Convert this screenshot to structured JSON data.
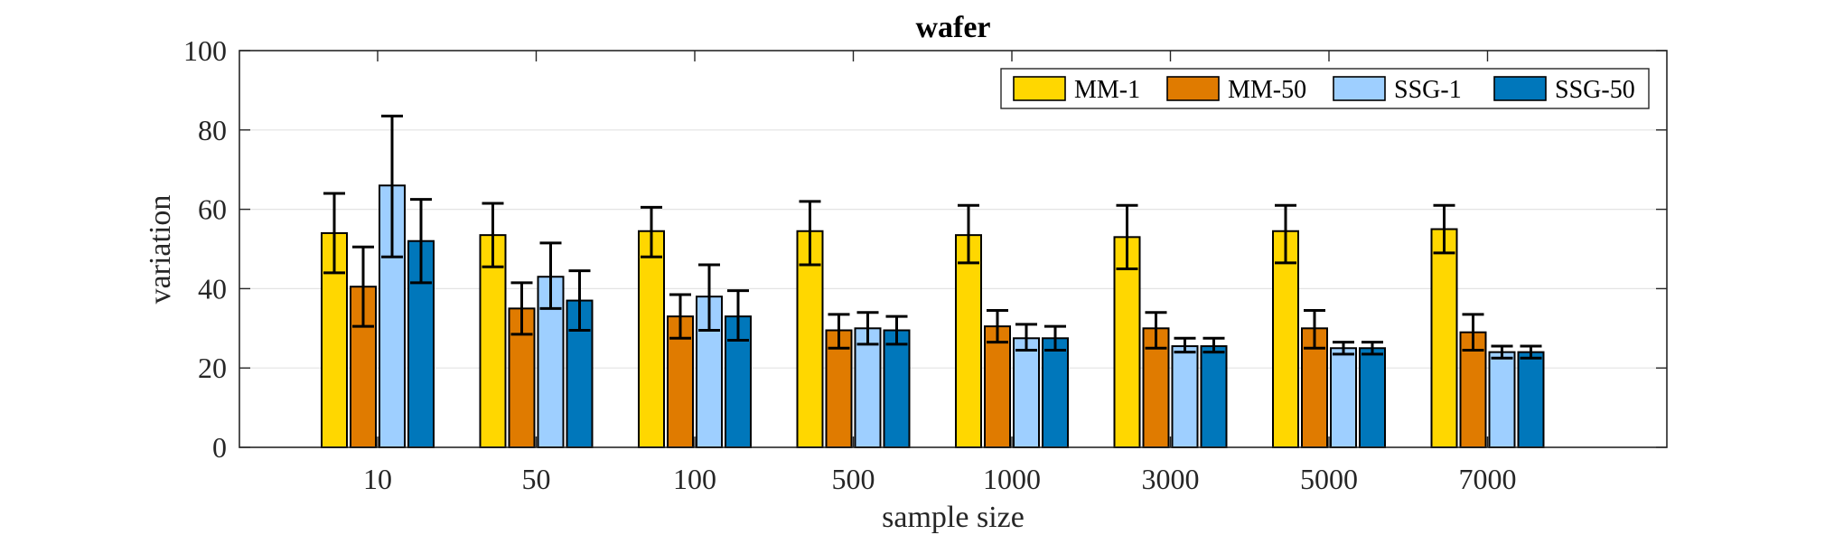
{
  "chart_data": {
    "type": "bar",
    "title": "wafer",
    "xlabel": "sample size",
    "ylabel": "variation",
    "ylim": [
      0,
      100
    ],
    "yticks": [
      0,
      20,
      40,
      60,
      80,
      100
    ],
    "categories": [
      "10",
      "50",
      "100",
      "500",
      "1000",
      "3000",
      "5000",
      "7000"
    ],
    "grid": "horizontal",
    "legend_position": "top-right",
    "series": [
      {
        "name": "MM-1",
        "color": "#FFD700",
        "values": [
          54,
          53.5,
          54.5,
          54.5,
          53.5,
          53,
          54.5,
          55
        ],
        "err_low": [
          44,
          45.5,
          48,
          46,
          46.5,
          45,
          46.5,
          49
        ],
        "err_high": [
          64,
          61.5,
          60.5,
          62,
          61,
          61,
          61,
          61
        ]
      },
      {
        "name": "MM-50",
        "color": "#E07B00",
        "values": [
          40.5,
          35,
          33,
          29.5,
          30.5,
          30,
          30,
          29
        ],
        "err_low": [
          30.5,
          28.5,
          27.5,
          25,
          26.5,
          25,
          25,
          24.5
        ],
        "err_high": [
          50.5,
          41.5,
          38.5,
          33.5,
          34.5,
          34,
          34.5,
          33.5
        ]
      },
      {
        "name": "SSG-1",
        "color": "#9ECFFF",
        "values": [
          66,
          43,
          38,
          30,
          27.5,
          25.5,
          25,
          24
        ],
        "err_low": [
          48,
          35,
          29.5,
          26,
          24.5,
          24,
          23.5,
          22.5
        ],
        "err_high": [
          83.5,
          51.5,
          46,
          34,
          31,
          27.5,
          26.5,
          25.5
        ]
      },
      {
        "name": "SSG-50",
        "color": "#0077BB",
        "values": [
          52,
          37,
          33,
          29.5,
          27.5,
          25.5,
          25,
          24
        ],
        "err_low": [
          41.5,
          29.5,
          27,
          26,
          24.5,
          24,
          23.5,
          22.5
        ],
        "err_high": [
          62.5,
          44.5,
          39.5,
          33,
          30.5,
          27.5,
          26.5,
          25.5
        ]
      }
    ]
  }
}
